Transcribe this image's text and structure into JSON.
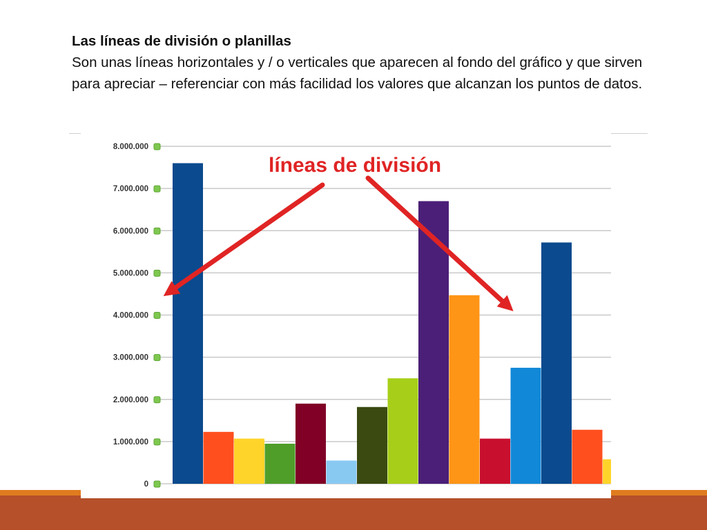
{
  "slide": {
    "heading": "Las líneas de división o planillas",
    "body": "Son unas líneas horizontales y / o verticales que aparecen al fondo del gráfico y que sirven para apreciar – referenciar con más facilidad los valores que alcanzan los puntos de datos."
  },
  "colors": {
    "footer_band": "#b5502a",
    "footer_stripe": "#e07c1f",
    "gridline": "#c9c9c9",
    "tick_marker": "#7ec850",
    "annotation": "#e02424"
  },
  "chart_data": {
    "type": "bar",
    "ylim": [
      0,
      8000000
    ],
    "grid": true,
    "y_ticks": [
      "0",
      "1.000.000",
      "2.000.000",
      "3.000.000",
      "4.000.000",
      "5.000.000",
      "6.000.000",
      "7.000.000",
      "8.000.000"
    ],
    "values": [
      7600000,
      1230000,
      1070000,
      950000,
      1900000,
      550000,
      1820000,
      2500000,
      6700000,
      4470000,
      1070000,
      2750000,
      5720000,
      1280000,
      580000
    ],
    "bar_colors": [
      "#0b4a8e",
      "#ff4f1f",
      "#ffd42a",
      "#4f9e2a",
      "#800026",
      "#88c9f2",
      "#3b4a10",
      "#a7cf1a",
      "#4b1f78",
      "#ff9516",
      "#c8102e",
      "#1288d8",
      "#0b4a8e",
      "#ff4f1f",
      "#ffd42a"
    ],
    "annotation": "líneas de división"
  }
}
